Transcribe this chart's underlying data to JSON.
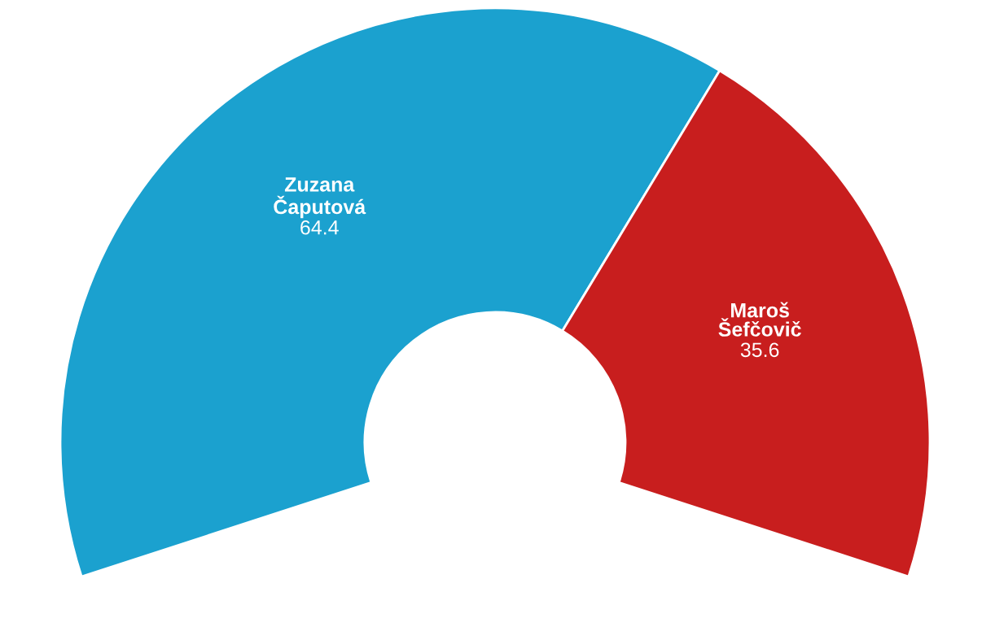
{
  "chart_data": {
    "type": "donut",
    "categories": [
      "Zuzana\nČaputová",
      "Maroš\nŠefčovič"
    ],
    "values": [
      64.4,
      35.6
    ],
    "colors": [
      "#1ba1cf",
      "#c81e1e"
    ],
    "data_labels": true
  }
}
